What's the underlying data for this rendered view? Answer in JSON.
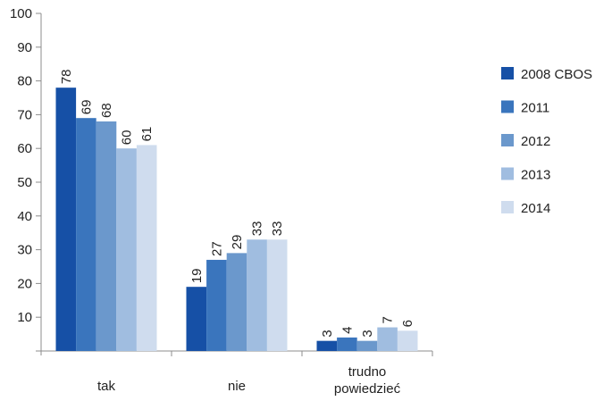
{
  "chart_data": {
    "type": "bar",
    "categories": [
      "tak",
      "nie",
      "trudno powiedzieć"
    ],
    "category_lines": [
      [
        "tak"
      ],
      [
        "nie"
      ],
      [
        "trudno",
        "powiedzieć"
      ]
    ],
    "series": [
      {
        "name": "2008 CBOS",
        "color": "#1650a6",
        "values": [
          78,
          19,
          3
        ]
      },
      {
        "name": "2011",
        "color": "#3a75bd",
        "values": [
          69,
          27,
          4
        ]
      },
      {
        "name": "2012",
        "color": "#6b98cc",
        "values": [
          68,
          29,
          3
        ]
      },
      {
        "name": "2013",
        "color": "#a0bde0",
        "values": [
          60,
          33,
          7
        ]
      },
      {
        "name": "2014",
        "color": "#cfdcee",
        "values": [
          61,
          33,
          6
        ]
      }
    ],
    "yticks": [
      10,
      20,
      30,
      40,
      50,
      60,
      70,
      80,
      90,
      100
    ],
    "ylim": [
      0,
      100
    ],
    "title": "",
    "xlabel": "",
    "ylabel": "",
    "grid": false,
    "legend": "right"
  }
}
